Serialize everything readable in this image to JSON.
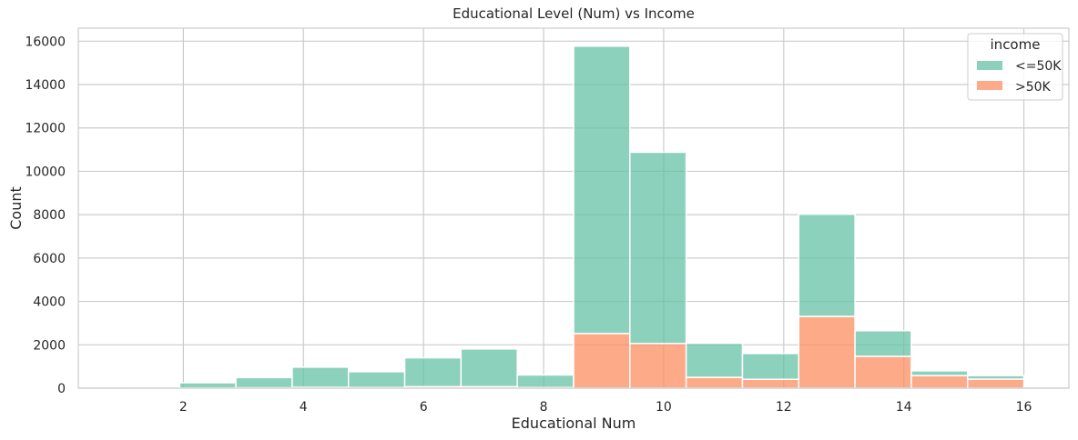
{
  "chart_data": {
    "type": "bar",
    "stacked": true,
    "title": "Educational Level (Num) vs Income",
    "xlabel": "Educational Num",
    "ylabel": "Count",
    "xlim": [
      0.25,
      16.75
    ],
    "ylim": [
      0,
      16600
    ],
    "xticks": [
      2,
      4,
      6,
      8,
      10,
      12,
      14,
      16
    ],
    "yticks": [
      0,
      2000,
      4000,
      6000,
      8000,
      10000,
      12000,
      14000,
      16000
    ],
    "grid": true,
    "legend": {
      "title": "income",
      "placement": "top-right"
    },
    "bin_edges": [
      1.0,
      1.9375,
      2.875,
      3.8125,
      4.75,
      5.6875,
      6.625,
      7.5625,
      8.5,
      9.4375,
      10.375,
      11.3125,
      12.25,
      13.1875,
      14.125,
      15.0625,
      16.0
    ],
    "series": [
      {
        "name": "<=50K",
        "color": "#66c2a5",
        "values": [
          70,
          240,
          470,
          930,
          730,
          1330,
          1740,
          580,
          13250,
          8820,
          1570,
          1190,
          4710,
          1180,
          220,
          160
        ]
      },
      {
        "name": ">50K",
        "color": "#fc8d62",
        "values": [
          0,
          10,
          20,
          40,
          30,
          70,
          70,
          30,
          2520,
          2060,
          500,
          410,
          3310,
          1470,
          580,
          420
        ]
      }
    ]
  }
}
